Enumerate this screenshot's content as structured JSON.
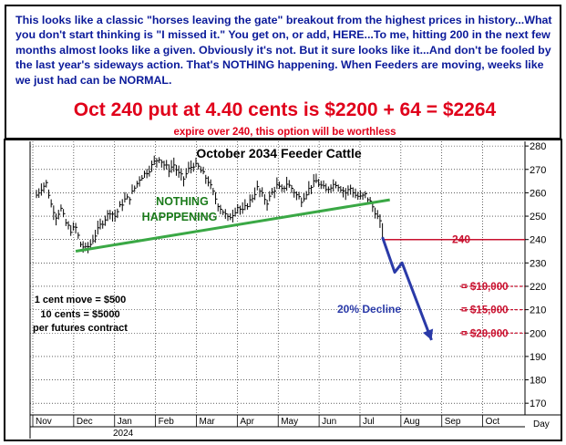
{
  "header": {
    "paragraph": "This looks like a classic \"horses leaving the gate\" breakout from the highest prices in history...What you don't start thinking is \"I missed it.\" You get on, or add, HERE...To me, hitting 200 in the next few months almost looks like a given. Obviously it's not. But it sure looks like it...And don't be fooled by the last year's sideways action. That's NOTHING happening. When Feeders are moving, weeks like we just had can be NORMAL.",
    "headline": "Oct 240 put at 4.40 cents is $2200 + 64 = $2264",
    "subline": "expire over 240, this option will be worthless"
  },
  "colors": {
    "header_text": "#0b1a9a",
    "headline": "#e0001a",
    "trendline": "#3aa845",
    "nothing_text": "#1a7a1a",
    "decline_arrow": "#2a3aa8",
    "strike_line": "#c8102e",
    "price_bars": "#000000"
  },
  "chart_data": {
    "type": "line",
    "title": "October 2034 Feeder Cattle",
    "ylim": [
      165,
      282
    ],
    "yticks": [
      170,
      180,
      190,
      200,
      210,
      220,
      230,
      240,
      250,
      260,
      270,
      280
    ],
    "xlabel_right": "Day",
    "year_label": "2024",
    "months": [
      "Nov",
      "Dec",
      "Jan",
      "Feb",
      "Mar",
      "Apr",
      "May",
      "Jun",
      "Jul",
      "Aug",
      "Sep",
      "Oct"
    ],
    "series": [
      {
        "name": "",
        "style": "daily-bars",
        "points": [
          [
            0,
            259
          ],
          [
            2,
            262
          ],
          [
            4,
            264
          ],
          [
            6,
            255
          ],
          [
            8,
            250
          ],
          [
            10,
            253
          ],
          [
            12,
            247
          ],
          [
            14,
            244
          ],
          [
            16,
            245
          ],
          [
            18,
            238
          ],
          [
            20,
            236
          ],
          [
            22,
            238
          ],
          [
            24,
            242
          ],
          [
            26,
            246
          ],
          [
            28,
            249
          ],
          [
            30,
            252
          ],
          [
            32,
            250
          ],
          [
            34,
            254
          ],
          [
            36,
            257
          ],
          [
            38,
            258
          ],
          [
            40,
            262
          ],
          [
            42,
            266
          ],
          [
            44,
            268
          ],
          [
            46,
            270
          ],
          [
            48,
            273
          ],
          [
            50,
            275
          ],
          [
            52,
            272
          ],
          [
            54,
            270
          ],
          [
            56,
            272
          ],
          [
            58,
            268
          ],
          [
            60,
            266
          ],
          [
            62,
            270
          ],
          [
            64,
            272
          ],
          [
            66,
            271
          ],
          [
            68,
            268
          ],
          [
            70,
            265
          ],
          [
            72,
            260
          ],
          [
            74,
            255
          ],
          [
            76,
            252
          ],
          [
            78,
            249
          ],
          [
            80,
            251
          ],
          [
            82,
            254
          ],
          [
            84,
            252
          ],
          [
            86,
            255
          ],
          [
            88,
            258
          ],
          [
            90,
            262
          ],
          [
            92,
            259
          ],
          [
            94,
            256
          ],
          [
            96,
            260
          ],
          [
            98,
            263
          ],
          [
            100,
            261
          ],
          [
            102,
            264
          ],
          [
            104,
            262
          ],
          [
            106,
            259
          ],
          [
            108,
            257
          ],
          [
            110,
            260
          ],
          [
            112,
            263
          ],
          [
            114,
            265
          ],
          [
            116,
            263
          ],
          [
            118,
            261
          ],
          [
            120,
            263
          ],
          [
            122,
            264
          ],
          [
            124,
            262
          ],
          [
            126,
            260
          ],
          [
            128,
            262
          ],
          [
            130,
            259
          ],
          [
            132,
            258
          ],
          [
            134,
            259
          ],
          [
            136,
            256
          ],
          [
            138,
            252
          ],
          [
            140,
            247
          ],
          [
            141,
            241
          ]
        ]
      },
      {
        "name": "",
        "style": "trendline",
        "points": [
          [
            16,
            235
          ],
          [
            144,
            257
          ]
        ]
      },
      {
        "name": "",
        "style": "decline-arrow",
        "points": [
          [
            141,
            241
          ],
          [
            146,
            226
          ],
          [
            149,
            230
          ],
          [
            161,
            197
          ]
        ]
      }
    ],
    "strike": {
      "value": 240,
      "label": "240"
    },
    "targets": [
      {
        "value": 220,
        "label": "= $10,000"
      },
      {
        "value": 210,
        "label": "= $15,000"
      },
      {
        "value": 200,
        "label": "= $20,000"
      }
    ],
    "annotations": {
      "nothing": [
        "NOTHING",
        "HAPPPENING"
      ],
      "decline": "20% Decline",
      "contract_notes": [
        "1 cent move = $500",
        "10 cents = $5000",
        "per futures contract"
      ]
    }
  }
}
